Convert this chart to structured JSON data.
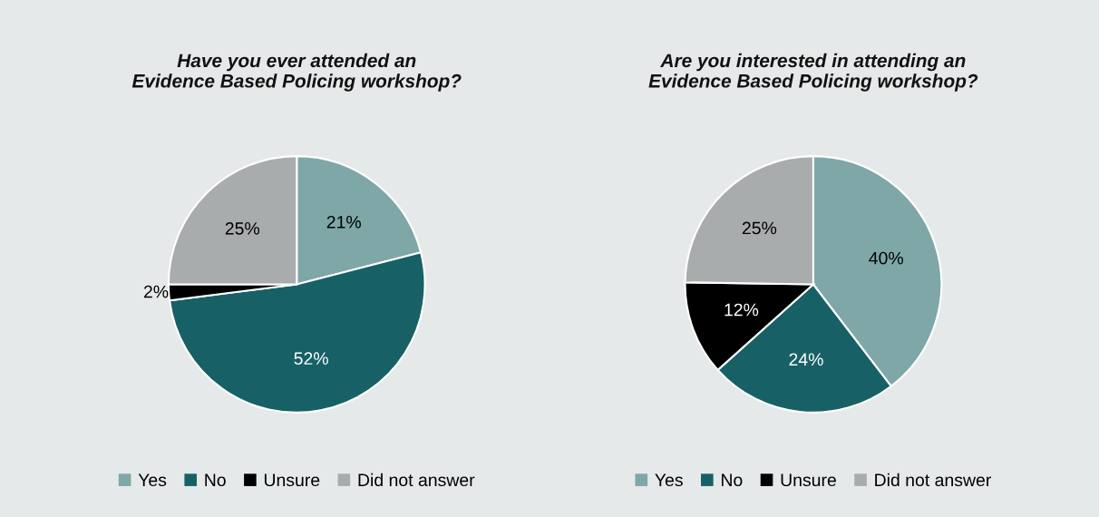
{
  "chart_data": [
    {
      "type": "pie",
      "title": "Have you ever attended an\nEvidence Based Policing workshop?",
      "categories": [
        "Yes",
        "No",
        "Unsure",
        "Did not answer"
      ],
      "values": [
        21,
        52,
        2,
        25
      ],
      "value_labels": [
        "21%",
        "52%",
        "2%",
        "25%"
      ],
      "colors": [
        "#7fa7a7",
        "#176166",
        "#000000",
        "#a9acad"
      ],
      "legend": "bottom"
    },
    {
      "type": "pie",
      "title": "Are you interested in attending an\nEvidence Based Policing workshop?",
      "categories": [
        "Yes",
        "No",
        "Unsure",
        "Did not answer"
      ],
      "values": [
        40,
        24,
        12,
        25
      ],
      "value_labels": [
        "40%",
        "24%",
        "12%",
        "25%"
      ],
      "colors": [
        "#7fa7a7",
        "#176166",
        "#000000",
        "#a9acad"
      ],
      "legend": "bottom"
    }
  ]
}
